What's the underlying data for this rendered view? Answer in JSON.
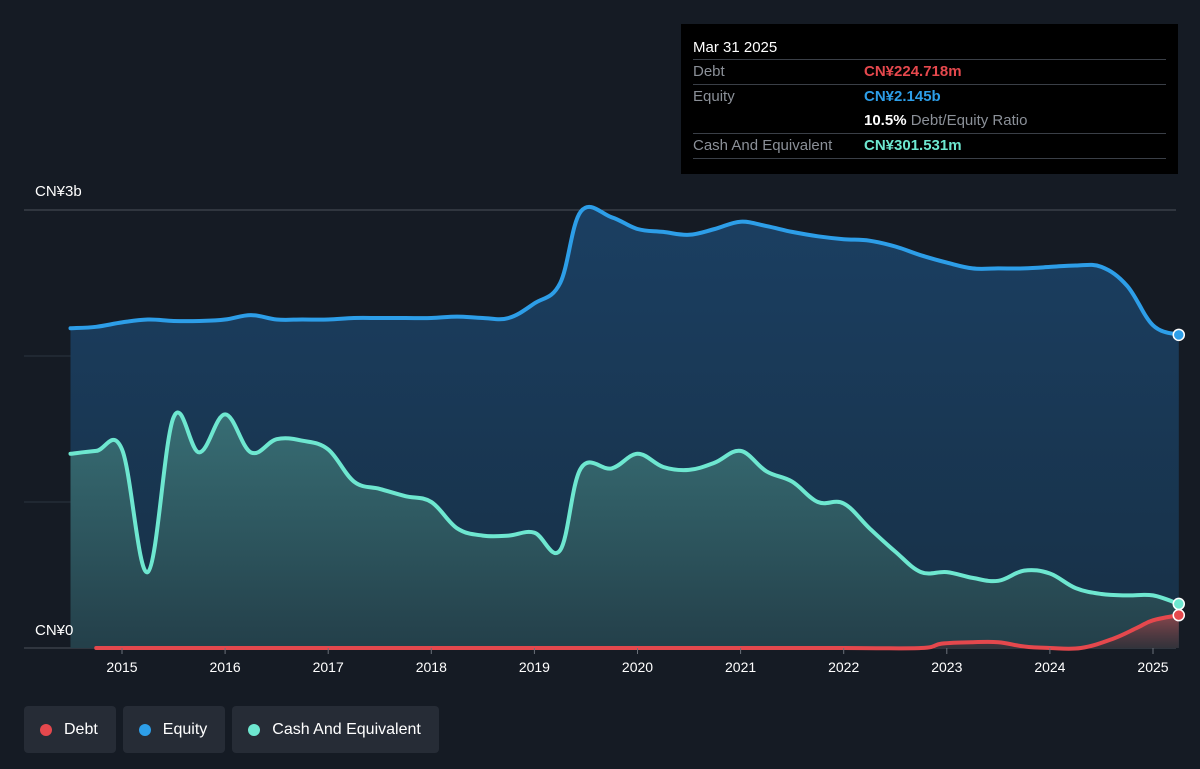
{
  "colors": {
    "debt": "#e5484d",
    "equity": "#2d9ee8",
    "cash": "#6ee7d0"
  },
  "tooltip": {
    "date": "Mar 31 2025",
    "debt_label": "Debt",
    "debt_value": "CN¥224.718m",
    "equity_label": "Equity",
    "equity_value": "CN¥2.145b",
    "ratio_pct": "10.5%",
    "ratio_label": "Debt/Equity Ratio",
    "cash_label": "Cash And Equivalent",
    "cash_value": "CN¥301.531m"
  },
  "legend": [
    {
      "name": "Debt",
      "color": "#e5484d"
    },
    {
      "name": "Equity",
      "color": "#2d9ee8"
    },
    {
      "name": "Cash And Equivalent",
      "color": "#6ee7d0"
    }
  ],
  "chart_data": {
    "type": "area",
    "y_top_label": "CN¥3b",
    "y_bottom_label": "CN¥0",
    "y_unit": "CN¥ billions",
    "ylim": [
      0,
      3.0
    ],
    "xlim": [
      2014.5,
      2025.25
    ],
    "x_ticks": [
      "2015",
      "2016",
      "2017",
      "2018",
      "2019",
      "2020",
      "2021",
      "2022",
      "2023",
      "2024",
      "2025"
    ],
    "grid": true,
    "legend_position": "bottom-left",
    "series": [
      {
        "name": "Equity",
        "points": [
          [
            2014.5,
            2.19
          ],
          [
            2014.75,
            2.2
          ],
          [
            2015.0,
            2.23
          ],
          [
            2015.25,
            2.25
          ],
          [
            2015.5,
            2.24
          ],
          [
            2015.75,
            2.24
          ],
          [
            2016.0,
            2.25
          ],
          [
            2016.25,
            2.28
          ],
          [
            2016.5,
            2.25
          ],
          [
            2016.75,
            2.25
          ],
          [
            2017.0,
            2.25
          ],
          [
            2017.25,
            2.26
          ],
          [
            2017.5,
            2.26
          ],
          [
            2017.75,
            2.26
          ],
          [
            2018.0,
            2.26
          ],
          [
            2018.25,
            2.27
          ],
          [
            2018.5,
            2.26
          ],
          [
            2018.75,
            2.26
          ],
          [
            2019.0,
            2.36
          ],
          [
            2019.25,
            2.5
          ],
          [
            2019.45,
            2.99
          ],
          [
            2019.75,
            2.95
          ],
          [
            2020.0,
            2.87
          ],
          [
            2020.25,
            2.85
          ],
          [
            2020.5,
            2.83
          ],
          [
            2020.75,
            2.87
          ],
          [
            2021.0,
            2.92
          ],
          [
            2021.25,
            2.89
          ],
          [
            2021.5,
            2.85
          ],
          [
            2021.75,
            2.82
          ],
          [
            2022.0,
            2.8
          ],
          [
            2022.25,
            2.79
          ],
          [
            2022.5,
            2.75
          ],
          [
            2022.75,
            2.69
          ],
          [
            2023.0,
            2.64
          ],
          [
            2023.25,
            2.6
          ],
          [
            2023.5,
            2.6
          ],
          [
            2023.75,
            2.6
          ],
          [
            2024.0,
            2.61
          ],
          [
            2024.25,
            2.62
          ],
          [
            2024.5,
            2.61
          ],
          [
            2024.75,
            2.48
          ],
          [
            2025.0,
            2.21
          ],
          [
            2025.25,
            2.145
          ]
        ]
      },
      {
        "name": "Cash And Equivalent",
        "points": [
          [
            2014.5,
            1.33
          ],
          [
            2014.75,
            1.35
          ],
          [
            2015.0,
            1.36
          ],
          [
            2015.25,
            0.52
          ],
          [
            2015.5,
            1.58
          ],
          [
            2015.75,
            1.34
          ],
          [
            2016.0,
            1.6
          ],
          [
            2016.25,
            1.34
          ],
          [
            2016.5,
            1.43
          ],
          [
            2016.75,
            1.42
          ],
          [
            2017.0,
            1.36
          ],
          [
            2017.25,
            1.14
          ],
          [
            2017.5,
            1.09
          ],
          [
            2017.75,
            1.04
          ],
          [
            2018.0,
            1.0
          ],
          [
            2018.25,
            0.82
          ],
          [
            2018.5,
            0.77
          ],
          [
            2018.75,
            0.77
          ],
          [
            2019.0,
            0.79
          ],
          [
            2019.25,
            0.67
          ],
          [
            2019.45,
            1.23
          ],
          [
            2019.75,
            1.23
          ],
          [
            2020.0,
            1.33
          ],
          [
            2020.25,
            1.24
          ],
          [
            2020.5,
            1.22
          ],
          [
            2020.75,
            1.27
          ],
          [
            2021.0,
            1.35
          ],
          [
            2021.25,
            1.21
          ],
          [
            2021.5,
            1.14
          ],
          [
            2021.75,
            1.0
          ],
          [
            2022.0,
            0.99
          ],
          [
            2022.25,
            0.82
          ],
          [
            2022.5,
            0.66
          ],
          [
            2022.75,
            0.52
          ],
          [
            2023.0,
            0.52
          ],
          [
            2023.25,
            0.48
          ],
          [
            2023.5,
            0.46
          ],
          [
            2023.75,
            0.53
          ],
          [
            2024.0,
            0.51
          ],
          [
            2024.25,
            0.41
          ],
          [
            2024.5,
            0.37
          ],
          [
            2024.75,
            0.36
          ],
          [
            2025.0,
            0.36
          ],
          [
            2025.25,
            0.302
          ]
        ]
      },
      {
        "name": "Debt",
        "points": [
          [
            2014.75,
            0.0
          ],
          [
            2015.0,
            0.0
          ],
          [
            2016.0,
            0.0
          ],
          [
            2017.0,
            0.0
          ],
          [
            2018.0,
            0.0
          ],
          [
            2019.0,
            0.0
          ],
          [
            2020.0,
            0.0
          ],
          [
            2021.0,
            0.0
          ],
          [
            2022.0,
            0.0
          ],
          [
            2022.75,
            0.0
          ],
          [
            2022.95,
            0.03
          ],
          [
            2023.25,
            0.04
          ],
          [
            2023.5,
            0.04
          ],
          [
            2023.75,
            0.01
          ],
          [
            2024.0,
            0.0
          ],
          [
            2024.3,
            0.0
          ],
          [
            2024.6,
            0.06
          ],
          [
            2024.85,
            0.14
          ],
          [
            2025.0,
            0.19
          ],
          [
            2025.25,
            0.225
          ]
        ]
      }
    ]
  }
}
